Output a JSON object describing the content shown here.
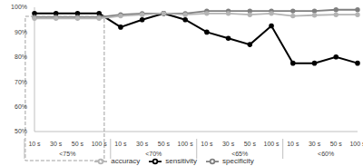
{
  "chart_data": {
    "type": "line",
    "categories": [
      "10 s",
      "30 s",
      "50 s",
      "100 s",
      "10 s",
      "30 s",
      "50 s",
      "100 s",
      "10 s",
      "30 s",
      "50 s",
      "100 s",
      "10 s",
      "30 s",
      "50 s",
      "100 s"
    ],
    "groups": [
      "<75%",
      "<70%",
      "<65%",
      "<60%"
    ],
    "series": [
      {
        "name": "sensitivity",
        "color": "#000000",
        "marker": "circle",
        "values": [
          97.5,
          97.5,
          97.5,
          97.5,
          92,
          95,
          97.5,
          95,
          90,
          87.5,
          85,
          92.5,
          77.5,
          77.5,
          80,
          77.5
        ]
      },
      {
        "name": "specificity",
        "color": "#7f7f7f",
        "marker": "circle",
        "values": [
          96,
          96,
          96,
          96,
          97,
          97.5,
          97.5,
          97.5,
          98.5,
          98.5,
          98.5,
          98.5,
          98.5,
          98.5,
          99,
          99
        ]
      },
      {
        "name": "accuracy",
        "color": "#b4b4b4",
        "marker": "circle",
        "values": [
          95.5,
          95.5,
          95.5,
          95.5,
          96.5,
          97,
          97.5,
          97,
          97.5,
          97.5,
          97,
          97.5,
          96.5,
          96.8,
          97,
          97
        ]
      }
    ],
    "ylim": [
      50,
      100
    ],
    "yticks": [
      {
        "value": 50,
        "label": "50%"
      },
      {
        "value": 60,
        "label": "60%"
      },
      {
        "value": 70,
        "label": "70%"
      },
      {
        "value": 80,
        "label": "80%"
      },
      {
        "value": 90,
        "label": "90%"
      },
      {
        "value": 100,
        "label": "100%"
      }
    ],
    "grid": false,
    "legend": "bottom"
  }
}
